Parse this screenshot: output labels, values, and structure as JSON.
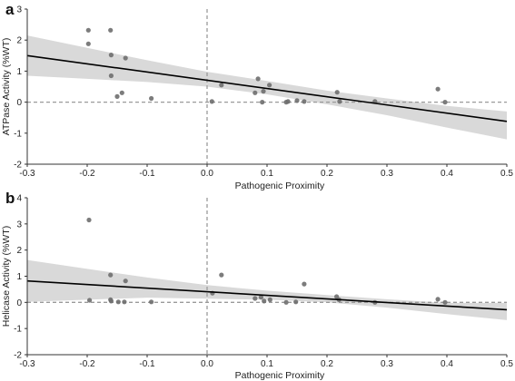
{
  "chart_data": [
    {
      "type": "scatter",
      "panel_label": "a",
      "xlabel": "Pathogenic Proximity",
      "ylabel": "ATPase Activity (%WT)",
      "xlim": [
        -0.3,
        0.5
      ],
      "ylim": [
        -2,
        3
      ],
      "xticks": [
        "-0.3",
        "-0.2",
        "-0.1",
        "0.0",
        "0.1",
        "0.2",
        "0.3",
        "0.4",
        "0.5"
      ],
      "yticks": [
        "-2",
        "-1",
        "0",
        "1",
        "2",
        "3"
      ],
      "reference_lines": {
        "x": 0.0,
        "y": 0.0,
        "style": "dashed"
      },
      "grid": false,
      "fit": {
        "x": [
          -0.3,
          0.5
        ],
        "y": [
          1.5,
          -0.62
        ]
      },
      "confidence_band": {
        "x": [
          -0.3,
          -0.2,
          -0.1,
          0.0,
          0.1,
          0.2,
          0.3,
          0.4,
          0.5
        ],
        "upper": [
          2.15,
          1.75,
          1.35,
          0.98,
          0.68,
          0.37,
          0.12,
          -0.12,
          -0.3
        ],
        "lower": [
          0.85,
          0.75,
          0.65,
          0.5,
          0.25,
          -0.07,
          -0.42,
          -0.82,
          -1.2
        ]
      },
      "points": [
        {
          "x": -0.198,
          "y": 2.32
        },
        {
          "x": -0.161,
          "y": 2.32
        },
        {
          "x": -0.198,
          "y": 1.88
        },
        {
          "x": -0.16,
          "y": 1.52
        },
        {
          "x": -0.136,
          "y": 1.42
        },
        {
          "x": -0.16,
          "y": 0.85
        },
        {
          "x": -0.142,
          "y": 0.3
        },
        {
          "x": -0.15,
          "y": 0.18
        },
        {
          "x": -0.093,
          "y": 0.12
        },
        {
          "x": 0.024,
          "y": 0.55
        },
        {
          "x": 0.008,
          "y": 0.02
        },
        {
          "x": 0.085,
          "y": 0.75
        },
        {
          "x": 0.104,
          "y": 0.55
        },
        {
          "x": 0.08,
          "y": 0.3
        },
        {
          "x": 0.094,
          "y": 0.35
        },
        {
          "x": 0.135,
          "y": 0.02
        },
        {
          "x": 0.15,
          "y": 0.05
        },
        {
          "x": 0.162,
          "y": 0.02
        },
        {
          "x": 0.217,
          "y": 0.32
        },
        {
          "x": 0.221,
          "y": 0.02
        },
        {
          "x": 0.28,
          "y": 0.02
        },
        {
          "x": 0.385,
          "y": 0.42
        },
        {
          "x": 0.397,
          "y": 0.0
        },
        {
          "x": 0.092,
          "y": 0.0
        },
        {
          "x": 0.132,
          "y": 0.0
        }
      ]
    },
    {
      "type": "scatter",
      "panel_label": "b",
      "xlabel": "Pathogenic Proximity",
      "ylabel": "Helicase Activity (%WT)",
      "xlim": [
        -0.3,
        0.5
      ],
      "ylim": [
        -2,
        4
      ],
      "xticks": [
        "-0.3",
        "-0.2",
        "-0.1",
        "0.0",
        "0.1",
        "0.2",
        "0.3",
        "0.4",
        "0.5"
      ],
      "yticks": [
        "-2",
        "-1",
        "0",
        "1",
        "2",
        "3",
        "4"
      ],
      "reference_lines": {
        "x": 0.0,
        "y": 0.0,
        "style": "dashed"
      },
      "grid": false,
      "fit": {
        "x": [
          -0.3,
          0.5
        ],
        "y": [
          0.82,
          -0.28
        ]
      },
      "confidence_band": {
        "x": [
          -0.3,
          -0.2,
          -0.1,
          0.0,
          0.1,
          0.2,
          0.3,
          0.4,
          0.5
        ],
        "upper": [
          1.62,
          1.28,
          0.95,
          0.66,
          0.45,
          0.28,
          0.12,
          -0.02,
          -0.02
        ],
        "lower": [
          0.02,
          0.1,
          0.18,
          0.14,
          0.1,
          0.0,
          -0.2,
          -0.45,
          -0.68
        ]
      },
      "points": [
        {
          "x": -0.197,
          "y": 3.15
        },
        {
          "x": -0.161,
          "y": 1.05
        },
        {
          "x": -0.136,
          "y": 0.82
        },
        {
          "x": -0.196,
          "y": 0.08
        },
        {
          "x": -0.161,
          "y": 0.1
        },
        {
          "x": -0.16,
          "y": 0.05
        },
        {
          "x": -0.148,
          "y": 0.02
        },
        {
          "x": -0.138,
          "y": 0.02
        },
        {
          "x": -0.093,
          "y": 0.02
        },
        {
          "x": 0.009,
          "y": 0.35
        },
        {
          "x": 0.024,
          "y": 1.05
        },
        {
          "x": 0.08,
          "y": 0.15
        },
        {
          "x": 0.09,
          "y": 0.2
        },
        {
          "x": 0.095,
          "y": 0.05
        },
        {
          "x": 0.105,
          "y": 0.1
        },
        {
          "x": 0.132,
          "y": 0.0
        },
        {
          "x": 0.148,
          "y": 0.02
        },
        {
          "x": 0.162,
          "y": 0.7
        },
        {
          "x": 0.216,
          "y": 0.22
        },
        {
          "x": 0.22,
          "y": 0.1
        },
        {
          "x": 0.28,
          "y": 0.0
        },
        {
          "x": 0.385,
          "y": 0.12
        },
        {
          "x": 0.397,
          "y": 0.0
        }
      ]
    }
  ]
}
